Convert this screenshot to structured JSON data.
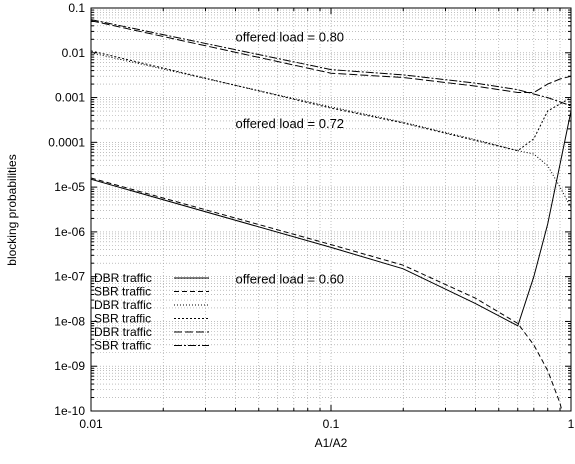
{
  "chart_data": {
    "type": "line",
    "title": "",
    "xlabel": "A1/A2",
    "ylabel": "blocking probabilities",
    "x_scale": "log",
    "y_scale": "log",
    "xlim": [
      0.01,
      1
    ],
    "ylim": [
      1e-10,
      0.1
    ],
    "grid": true,
    "legend_position": "left",
    "x_ticks": [
      0.01,
      0.1,
      1
    ],
    "x_tick_labels": [
      "0.01",
      "0.1",
      "1"
    ],
    "y_ticks": [
      0.1,
      0.01,
      0.001,
      0.0001,
      1e-05,
      1e-06,
      1e-07,
      1e-08,
      1e-09,
      1e-10
    ],
    "y_tick_labels": [
      "0.1",
      "0.01",
      "0.001",
      "0.0001",
      "1e-05",
      "1e-06",
      "1e-07",
      "1e-08",
      "1e-09",
      "1e-10"
    ],
    "annotations": [
      {
        "text": "offered load = 0.80",
        "x": 0.04,
        "y": 0.018
      },
      {
        "text": "offered load = 0.72",
        "x": 0.04,
        "y": 0.00021
      },
      {
        "text": "offered load = 0.60",
        "x": 0.04,
        "y": 7e-08
      }
    ],
    "series": [
      {
        "name": "DBR traffic",
        "dash": "solid",
        "x": [
          0.01,
          0.1,
          0.2,
          0.4,
          0.6,
          0.7,
          0.8,
          1.0
        ],
        "y": [
          1.5e-05,
          4.5e-07,
          1.5e-07,
          2.5e-08,
          8e-09,
          1e-07,
          1.5e-06,
          0.0005
        ]
      },
      {
        "name": "SBR traffic",
        "dash": "5,3",
        "x": [
          0.01,
          0.1,
          0.2,
          0.4,
          0.6,
          0.7,
          0.8,
          0.9,
          1.0
        ],
        "y": [
          1.6e-05,
          5.2e-07,
          1.8e-07,
          3.3e-08,
          9e-09,
          3e-09,
          8e-10,
          1.5e-10,
          1.5e-11
        ]
      },
      {
        "name": "DBR traffic",
        "dash": "1,2",
        "x": [
          0.01,
          0.1,
          0.2,
          0.4,
          0.6,
          0.7,
          0.8,
          0.9,
          1.0
        ],
        "y": [
          0.01,
          0.00062,
          0.00028,
          0.000115,
          6.5e-05,
          5.5e-05,
          3e-05,
          1e-05,
          3.5e-06
        ]
      },
      {
        "name": "SBR traffic",
        "dash": "2,2",
        "x": [
          0.01,
          0.1,
          0.2,
          0.4,
          0.6,
          0.7,
          0.8,
          1.0
        ],
        "y": [
          0.011,
          0.00058,
          0.00027,
          0.00011,
          6.5e-05,
          0.00012,
          0.0005,
          0.001
        ]
      },
      {
        "name": "DBR traffic",
        "dash": "8,3",
        "x": [
          0.01,
          0.1,
          0.2,
          0.4,
          0.6,
          0.7,
          0.8,
          0.9,
          1.0
        ],
        "y": [
          0.052,
          0.0035,
          0.0028,
          0.0018,
          0.0013,
          0.0013,
          0.002,
          0.0026,
          0.003
        ]
      },
      {
        "name": "SBR traffic",
        "dash": "8,2,2,2",
        "x": [
          0.01,
          0.1,
          0.2,
          0.4,
          0.6,
          0.7,
          0.8,
          0.9,
          1.0
        ],
        "y": [
          0.055,
          0.0042,
          0.0032,
          0.0021,
          0.0015,
          0.0012,
          0.001,
          0.0008,
          0.00065
        ]
      }
    ]
  }
}
